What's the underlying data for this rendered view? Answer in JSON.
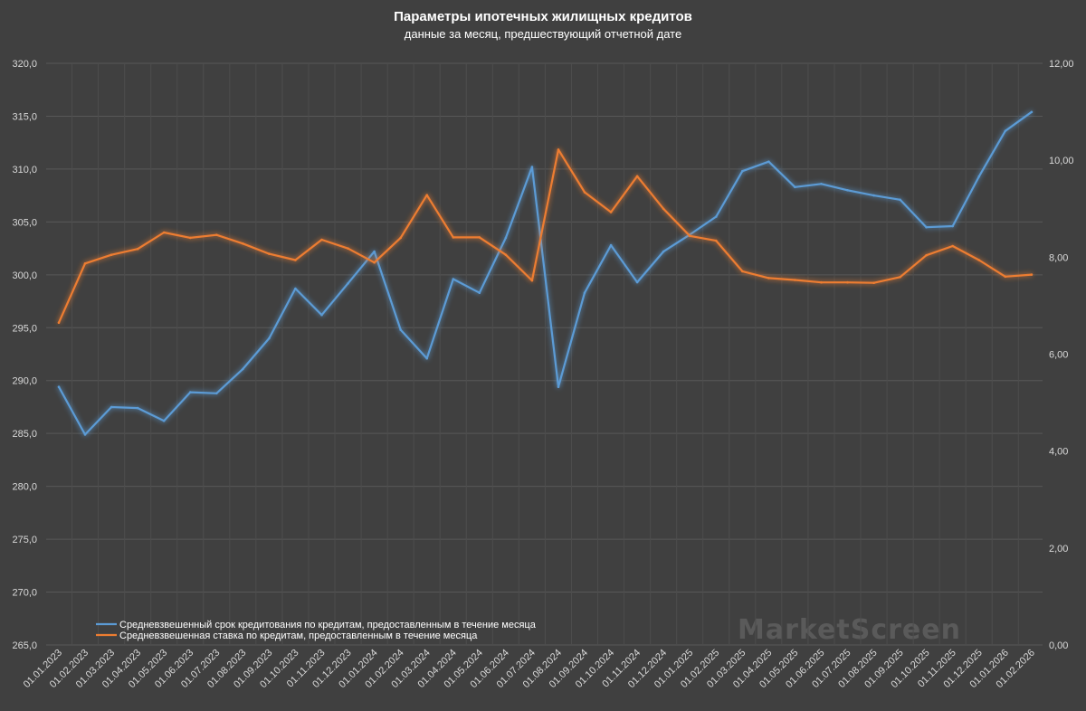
{
  "chart_data": {
    "type": "line",
    "title": "Параметры ипотечных жилищных кредитов",
    "subtitle": "данные за месяц, предшествующий отчетной дате",
    "watermark": "MarketScreen",
    "categories": [
      "01.01.2023",
      "01.02.2023",
      "01.03.2023",
      "01.04.2023",
      "01.05.2023",
      "01.06.2023",
      "01.07.2023",
      "01.08.2023",
      "01.09.2023",
      "01.10.2023",
      "01.11.2023",
      "01.12.2023",
      "01.01.2024",
      "01.02.2024",
      "01.03.2024",
      "01.04.2024",
      "01.05.2024",
      "01.06.2024",
      "01.07.2024",
      "01.08.2024",
      "01.09.2024",
      "01.10.2024",
      "01.11.2024",
      "01.12.2024",
      "01.01.2025",
      "01.02.2025",
      "01.03.2025",
      "01.04.2025",
      "01.05.2025",
      "01.06.2025",
      "01.07.2025",
      "01.08.2025",
      "01.09.2025",
      "01.10.2025",
      "01.11.2025",
      "01.12.2025",
      "01.01.2026",
      "01.02.2026"
    ],
    "y_left": {
      "ylim": [
        265,
        320
      ],
      "ticks": [
        "265,0",
        "270,0",
        "275,0",
        "280,0",
        "285,0",
        "290,0",
        "295,0",
        "300,0",
        "305,0",
        "310,0",
        "315,0",
        "320,0"
      ]
    },
    "y_right": {
      "ylim": [
        0,
        12
      ],
      "ticks": [
        "0,00",
        "2,00",
        "4,00",
        "6,00",
        "8,00",
        "10,00",
        "12,00"
      ]
    },
    "grid": true,
    "legend_position": "bottom-left",
    "series": [
      {
        "name": "Средневзвешенный срок кредитования по кредитам, предоставленным в течение месяца",
        "axis": "left",
        "color": "#5b9bd5",
        "values": [
          289.4,
          284.9,
          287.5,
          287.4,
          286.2,
          288.9,
          288.8,
          291.1,
          294.0,
          298.7,
          296.2,
          299.2,
          302.2,
          294.8,
          292.1,
          299.6,
          298.3,
          303.5,
          310.2,
          289.4,
          298.3,
          302.8,
          299.3,
          302.2,
          303.8,
          305.5,
          309.8,
          310.7,
          308.3,
          308.6,
          308.0,
          307.5,
          307.1,
          304.5,
          304.6,
          309.3,
          313.6,
          315.4
        ]
      },
      {
        "name": "Средневзвешенная ставка по кредитам, предоставленным в течение месяца",
        "axis": "right",
        "color": "#ed7d31",
        "values": [
          6.65,
          7.87,
          8.05,
          8.17,
          8.51,
          8.4,
          8.46,
          8.28,
          8.07,
          7.94,
          8.36,
          8.18,
          7.89,
          8.4,
          9.28,
          8.41,
          8.41,
          8.05,
          7.52,
          10.22,
          9.34,
          8.93,
          9.67,
          9.0,
          8.44,
          8.34,
          7.71,
          7.57,
          7.53,
          7.48,
          7.48,
          7.47,
          7.59,
          8.04,
          8.23,
          7.94,
          7.6,
          7.64
        ]
      }
    ]
  }
}
